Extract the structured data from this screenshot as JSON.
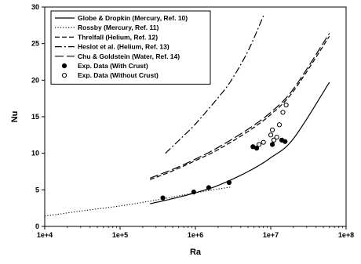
{
  "chart_data": {
    "type": "line",
    "title": "",
    "xlabel": "Ra",
    "ylabel": "Nu",
    "xscale": "log",
    "xlim": [
      10000,
      100000000
    ],
    "ylim": [
      0,
      30
    ],
    "grid": false,
    "legend_position": "top-left",
    "x_tick_labels": [
      "1e+4",
      "1e+5",
      "1e+6",
      "1e+7",
      "1e+8"
    ],
    "x_tick_values": [
      10000,
      100000,
      1000000,
      10000000,
      100000000
    ],
    "y_tick_labels": [
      "0",
      "5",
      "10",
      "15",
      "20",
      "25",
      "30"
    ],
    "y_tick_values": [
      0,
      5,
      10,
      15,
      20,
      25,
      30
    ],
    "series": [
      {
        "name": "Globe & Dropkin (Mercury, Ref. 10)",
        "style": "solid",
        "color": "#000000",
        "x": [
          250000,
          500000,
          1000000,
          2000000,
          5000000,
          10000000,
          20000000,
          60000000
        ],
        "y": [
          3.1,
          3.8,
          4.6,
          5.6,
          7.5,
          9.4,
          12.0,
          19.7
        ]
      },
      {
        "name": "Rossby (Mercury, Ref. 11)",
        "style": "dotted",
        "color": "#000000",
        "x": [
          10000,
          30000,
          100000,
          300000,
          1000000,
          3000000
        ],
        "y": [
          1.4,
          2.1,
          2.8,
          3.6,
          4.6,
          5.4
        ]
      },
      {
        "name": "Threlfall (Helium, Ref. 12)",
        "style": "dashed",
        "color": "#000000",
        "x": [
          250000,
          500000,
          1000000,
          2000000,
          5000000,
          10000000,
          20000000,
          60000000
        ],
        "y": [
          6.4,
          7.6,
          9.0,
          10.5,
          13.0,
          15.3,
          18.5,
          26.0
        ]
      },
      {
        "name": "Heslot et al. (Helium, Ref. 13)",
        "style": "dashdot",
        "color": "#000000",
        "x": [
          400000,
          700000,
          1000000,
          2000000,
          3000000,
          5000000,
          8000000
        ],
        "y": [
          10.0,
          12.4,
          14.0,
          17.6,
          20.0,
          24.0,
          28.8
        ]
      },
      {
        "name": "Chu & Goldstein (Water, Ref. 14)",
        "style": "longdash",
        "color": "#000000",
        "x": [
          250000,
          500000,
          1000000,
          2000000,
          5000000,
          10000000,
          20000000,
          60000000
        ],
        "y": [
          6.6,
          7.8,
          9.2,
          10.8,
          13.3,
          15.6,
          18.8,
          26.4
        ]
      },
      {
        "name": "Exp. Data (With Crust)",
        "style": "marker-filled",
        "color": "#000000",
        "x": [
          370000,
          950000,
          1500000,
          2800000,
          5800000,
          6500000,
          10500000,
          11000000,
          14000000,
          15500000
        ],
        "y": [
          3.9,
          4.7,
          5.3,
          6.0,
          10.9,
          10.7,
          11.2,
          11.8,
          11.8,
          11.6
        ]
      },
      {
        "name": "Exp. Data (Without Crust)",
        "style": "marker-open",
        "color": "#000000",
        "x": [
          7000000,
          8000000,
          10000000,
          10500000,
          11000000,
          12000000,
          13000000,
          14500000,
          16000000
        ],
        "y": [
          11.2,
          11.5,
          12.5,
          13.2,
          11.8,
          12.2,
          13.9,
          15.6,
          16.6
        ]
      }
    ]
  }
}
